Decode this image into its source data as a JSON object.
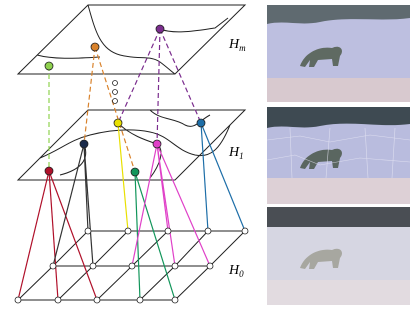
{
  "planes": [
    {
      "label": "H",
      "subscript": "m"
    },
    {
      "label": "H",
      "subscript": "1"
    },
    {
      "label": "H",
      "subscript": "0"
    }
  ]
}
